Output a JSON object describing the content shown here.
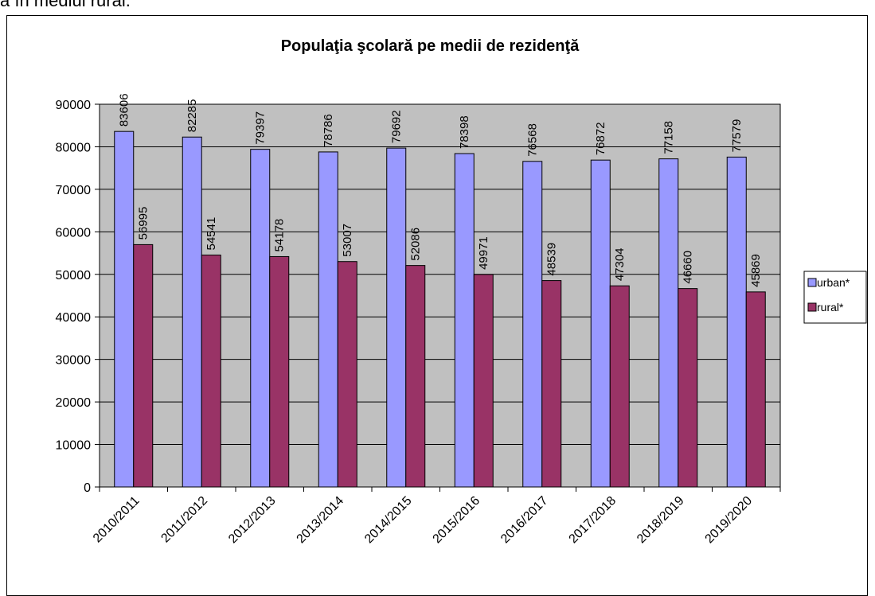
{
  "page": {
    "top_text": "ă în mediul rural."
  },
  "chart_data": {
    "type": "bar",
    "title": "Populaţia şcolară pe medii de rezidenţă",
    "categories": [
      "2010/2011",
      "2011/2012",
      "2012/2013",
      "2013/2014",
      "2014/2015",
      "2015/2016",
      "2016/2017",
      "2017/2018",
      "2018/2019",
      "2019/2020"
    ],
    "series": [
      {
        "name": "urban*",
        "color": "#9999ff",
        "values": [
          83606,
          82285,
          79397,
          78786,
          79692,
          78398,
          76568,
          76872,
          77158,
          77579
        ]
      },
      {
        "name": "rural*",
        "color": "#993366",
        "values": [
          56995,
          54541,
          54178,
          53007,
          52086,
          49971,
          48539,
          47304,
          46660,
          45869
        ]
      }
    ],
    "ylim": [
      0,
      90000
    ],
    "yticks": [
      0,
      10000,
      20000,
      30000,
      40000,
      50000,
      60000,
      70000,
      80000,
      90000
    ],
    "plot_background": "#c0c0c0",
    "grid": true,
    "legend_position": "right",
    "xlabel": "",
    "ylabel": ""
  }
}
